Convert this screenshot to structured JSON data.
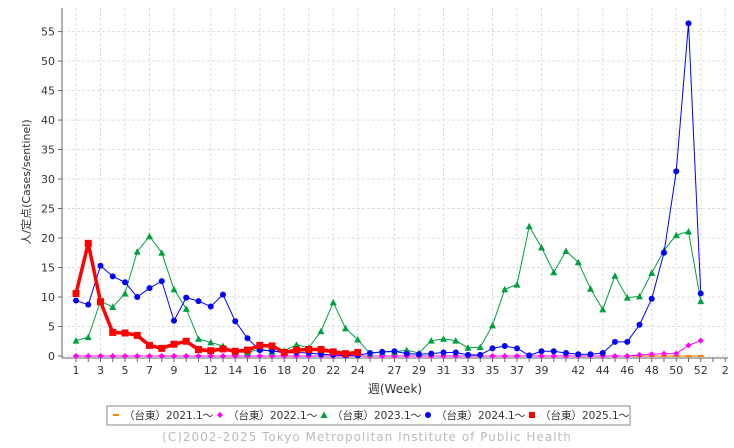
{
  "chart_data": {
    "type": "line",
    "y_label": "人/定点(Cases/sentinel)",
    "x_label": "週(Week)",
    "footer": "(C)2002-2025 Tokyo Metropolitan Institute of Public Health",
    "categories": [
      1,
      null,
      3,
      null,
      5,
      null,
      7,
      null,
      9,
      null,
      null,
      12,
      null,
      14,
      null,
      16,
      null,
      18,
      null,
      20,
      null,
      22,
      null,
      24,
      null,
      null,
      27,
      null,
      29,
      null,
      31,
      null,
      33,
      null,
      35,
      null,
      37,
      null,
      39,
      null,
      null,
      42,
      null,
      44,
      null,
      46,
      null,
      48,
      null,
      50,
      null,
      52,
      null,
      2
    ],
    "ylim": [
      0,
      59
    ],
    "yticks": [
      0,
      5,
      10,
      15,
      20,
      25,
      30,
      35,
      40,
      45,
      50,
      55
    ],
    "grid": true,
    "legend": "bottom",
    "series": [
      {
        "name": "（台東）2021.1～",
        "color": "#ff8000",
        "marker": "dash",
        "width": 1,
        "values": [
          0,
          0,
          0,
          0,
          0,
          0,
          0,
          0,
          0,
          0,
          0,
          0,
          0,
          0,
          0,
          0,
          0,
          0,
          0,
          0,
          0,
          0,
          0,
          0,
          0,
          0,
          0,
          0,
          0,
          0,
          0,
          0,
          0,
          0,
          0,
          0,
          0,
          0,
          0,
          0,
          0,
          0,
          0,
          0,
          0,
          0,
          0,
          0,
          0,
          0,
          0,
          0,
          null,
          null
        ]
      },
      {
        "name": "（台東）2022.1～",
        "color": "#ff00ff",
        "marker": "diamond",
        "width": 1,
        "values": [
          0,
          0,
          0,
          0,
          0,
          0,
          0,
          0,
          0,
          0,
          0,
          0,
          0,
          0,
          0,
          0,
          0,
          0,
          0,
          0,
          0,
          0,
          0,
          0,
          0,
          0,
          0,
          0,
          0,
          0,
          0,
          0,
          0,
          0,
          0,
          0,
          0,
          0,
          0,
          0,
          0,
          0,
          0,
          0,
          0,
          0,
          0.2,
          0.3,
          0.4,
          0.4,
          1.8,
          2.6,
          null,
          null
        ]
      },
      {
        "name": "（台東）2023.1～",
        "color": "#00a040",
        "marker": "triangle",
        "width": 1,
        "values": [
          2.6,
          3.2,
          9.3,
          8.3,
          10.6,
          17.7,
          20.3,
          17.5,
          11.3,
          8.0,
          2.9,
          2.3,
          1.7,
          0.7,
          0.6,
          1.2,
          0.7,
          0.9,
          1.9,
          1.4,
          4.2,
          9.1,
          4.7,
          2.8,
          0.4,
          0.7,
          0.7,
          1.0,
          0.5,
          2.6,
          2.9,
          2.6,
          1.4,
          1.5,
          5.2,
          11.3,
          12.1,
          22.0,
          18.4,
          14.2,
          17.8,
          15.9,
          11.4,
          7.9,
          13.6,
          9.9,
          10.1,
          14.1,
          17.9,
          20.5,
          21.1,
          9.3,
          null,
          null
        ]
      },
      {
        "name": "（台東）2024.1～",
        "color": "#0000ff",
        "marker": "circle",
        "width": 1,
        "values": [
          9.4,
          8.7,
          15.3,
          13.5,
          12.5,
          10.0,
          11.5,
          12.7,
          6.0,
          9.9,
          9.3,
          8.4,
          10.4,
          5.9,
          3.0,
          1.0,
          0.9,
          0.5,
          0.6,
          0.5,
          0.3,
          0.2,
          0.1,
          0.1,
          0.5,
          0.7,
          0.8,
          0.4,
          0.3,
          0.4,
          0.6,
          0.6,
          0.2,
          0.2,
          1.3,
          1.7,
          1.3,
          0.1,
          0.8,
          0.8,
          0.5,
          0.3,
          0.3,
          0.5,
          2.4,
          2.4,
          5.3,
          9.7,
          17.5,
          31.3,
          56.4,
          10.6,
          null,
          null
        ]
      },
      {
        "name": "（台東）2025.1～",
        "color": "#ff0000",
        "marker": "square",
        "width": 3.5,
        "values": [
          10.6,
          19.1,
          9.2,
          4.0,
          3.9,
          3.5,
          1.8,
          1.3,
          2.0,
          2.5,
          1.1,
          0.9,
          1.2,
          0.8,
          1.0,
          1.8,
          1.7,
          0.6,
          1.0,
          1.1,
          1.1,
          0.7,
          0.4,
          0.6,
          null,
          null,
          null,
          null,
          null,
          null,
          null,
          null,
          null,
          null,
          null,
          null,
          null,
          null,
          null,
          null,
          null,
          null,
          null,
          null,
          null,
          null,
          null,
          null,
          null,
          null,
          null,
          null,
          null,
          null
        ]
      }
    ]
  }
}
